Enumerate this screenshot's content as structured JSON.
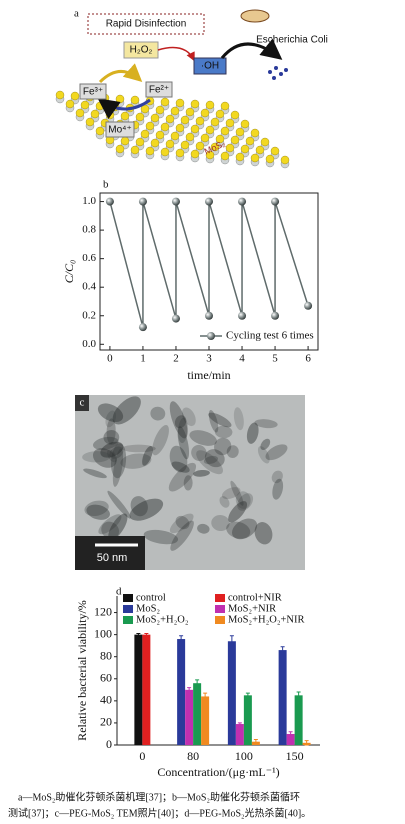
{
  "panel_labels": [
    "a",
    "b",
    "c",
    "d"
  ],
  "diagram": {
    "title": "Rapid Disinfection",
    "h2o2": "H₂O₂",
    "oh": "·OH",
    "bacteria": "Escherichia Coli",
    "fe3": "Fe³⁺",
    "fe2": "Fe²⁺",
    "mo": "Mo⁴⁺",
    "material": "MoS₂"
  },
  "micrograph": {
    "scale_bar": "50 nm"
  },
  "chart_data": [
    {
      "type": "line",
      "x": [
        0,
        1,
        1,
        2,
        2,
        3,
        3,
        4,
        4,
        5,
        5,
        6
      ],
      "series": [
        {
          "name": "Cycling test 6 times",
          "color": "#5f6b6b",
          "values": [
            1.0,
            0.12,
            1.0,
            0.18,
            1.0,
            0.2,
            1.0,
            0.2,
            1.0,
            0.2,
            1.0,
            0.27
          ]
        }
      ],
      "xlim": [
        -0.3,
        6.3
      ],
      "xticks": [
        0,
        1,
        2,
        3,
        4,
        5,
        6
      ],
      "ylim": [
        -0.04,
        1.06
      ],
      "yticks": [
        {
          "value": 0,
          "label": "0.0"
        },
        {
          "value": 0.2,
          "label": "0.2"
        },
        {
          "value": 0.4,
          "label": "0.4"
        },
        {
          "value": 0.6,
          "label": "0.6"
        },
        {
          "value": 0.8,
          "label": "0.8"
        },
        {
          "value": 1,
          "label": "1.0"
        }
      ],
      "x_label": "time/min",
      "y_label": "C/C₀",
      "legend": "lower right"
    },
    {
      "type": "bar",
      "categories": [
        "0",
        "80",
        "100",
        "150"
      ],
      "series": [
        {
          "name": "control",
          "color": "#111111",
          "values": [
            100,
            null,
            null,
            null
          ],
          "errors": [
            1,
            null,
            null,
            null
          ]
        },
        {
          "name": "control+NIR",
          "color": "#e02020",
          "values": [
            100,
            null,
            null,
            null
          ],
          "errors": [
            1,
            null,
            null,
            null
          ]
        },
        {
          "name": "MoS₂",
          "color": "#2a3a9a",
          "values": [
            null,
            96,
            94,
            86
          ],
          "errors": [
            null,
            3,
            5,
            3
          ]
        },
        {
          "name": "MoS₂+NIR",
          "color": "#c030b0",
          "values": [
            null,
            50,
            19,
            10
          ],
          "errors": [
            null,
            2,
            1,
            2
          ]
        },
        {
          "name": "MoS₂+H₂O₂",
          "color": "#1a9a50",
          "values": [
            null,
            56,
            45,
            45
          ],
          "errors": [
            null,
            3,
            2,
            3
          ]
        },
        {
          "name": "MoS₂+H₂O₂+NIR",
          "color": "#f08a20",
          "values": [
            null,
            44,
            3,
            2
          ],
          "errors": [
            null,
            3,
            2,
            2
          ]
        }
      ],
      "ylim": [
        0,
        135
      ],
      "yticks": [
        0,
        20,
        40,
        60,
        80,
        100,
        120
      ],
      "x_label": "Concentration/(μg·mL⁻¹)",
      "y_label": "Relative bacterial viability/%",
      "legend": "upper"
    }
  ],
  "caption": [
    "a—MoS₂助催化芬顿杀菌机理[37]；b—MoS₂助催化芬顿杀菌循环",
    "测试[37]；c—PEG-MoS₂ TEM照片[40]；d—PEG-MoS₂光热杀菌[40]。"
  ]
}
